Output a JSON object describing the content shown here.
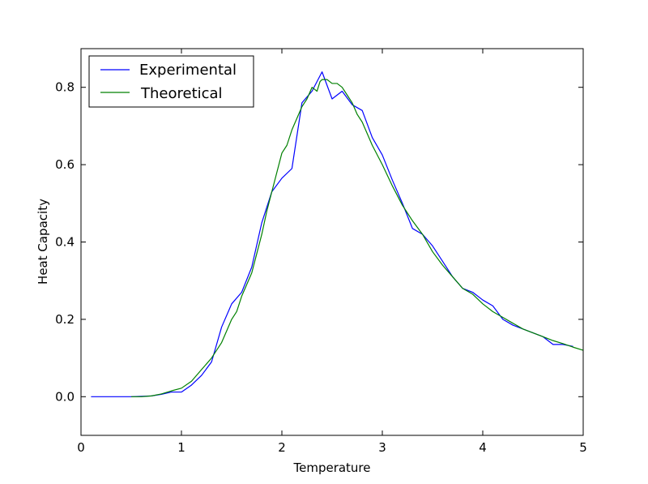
{
  "chart_data": {
    "type": "line",
    "title": "",
    "xlabel": "Temperature",
    "ylabel": "Heat Capacity",
    "xlim": [
      0,
      5
    ],
    "ylim": [
      -0.1,
      0.9
    ],
    "xticks": [
      0,
      1,
      2,
      3,
      4,
      5
    ],
    "yticks": [
      0.0,
      0.2,
      0.4,
      0.6,
      0.8
    ],
    "grid": false,
    "legend_position": "top-left",
    "series": [
      {
        "name": "Experimental",
        "color": "#0000ff",
        "x": [
          0.1,
          0.3,
          0.5,
          0.7,
          0.8,
          0.9,
          1.0,
          1.1,
          1.2,
          1.3,
          1.4,
          1.5,
          1.6,
          1.7,
          1.8,
          1.9,
          2.0,
          2.1,
          2.2,
          2.3,
          2.4,
          2.5,
          2.6,
          2.7,
          2.8,
          2.9,
          3.0,
          3.1,
          3.2,
          3.3,
          3.4,
          3.5,
          3.6,
          3.7,
          3.8,
          3.9,
          4.0,
          4.1,
          4.2,
          4.3,
          4.4,
          4.5,
          4.6,
          4.7,
          4.8,
          4.9
        ],
        "y": [
          0.0,
          0.0,
          0.0,
          0.002,
          0.006,
          0.012,
          0.012,
          0.03,
          0.055,
          0.09,
          0.18,
          0.24,
          0.27,
          0.335,
          0.45,
          0.53,
          0.565,
          0.59,
          0.76,
          0.79,
          0.84,
          0.77,
          0.79,
          0.755,
          0.74,
          0.67,
          0.625,
          0.56,
          0.5,
          0.435,
          0.42,
          0.39,
          0.35,
          0.31,
          0.28,
          0.27,
          0.25,
          0.235,
          0.2,
          0.185,
          0.175,
          0.165,
          0.155,
          0.135,
          0.135,
          0.13
        ]
      },
      {
        "name": "Theoretical",
        "color": "#008000",
        "x": [
          0.5,
          0.6,
          0.7,
          0.8,
          0.9,
          1.0,
          1.1,
          1.2,
          1.3,
          1.4,
          1.45,
          1.5,
          1.55,
          1.6,
          1.65,
          1.7,
          1.75,
          1.8,
          1.85,
          1.9,
          1.95,
          2.0,
          2.05,
          2.1,
          2.15,
          2.2,
          2.25,
          2.3,
          2.35,
          2.38,
          2.4,
          2.45,
          2.5,
          2.55,
          2.6,
          2.65,
          2.7,
          2.75,
          2.8,
          2.9,
          3.0,
          3.1,
          3.2,
          3.3,
          3.4,
          3.5,
          3.6,
          3.7,
          3.8,
          3.9,
          4.0,
          4.1,
          4.2,
          4.3,
          4.4,
          4.5,
          4.6,
          4.7,
          4.8,
          4.9,
          5.0
        ],
        "y": [
          0.0,
          0.0,
          0.002,
          0.007,
          0.015,
          0.022,
          0.04,
          0.07,
          0.1,
          0.14,
          0.17,
          0.2,
          0.22,
          0.26,
          0.29,
          0.32,
          0.37,
          0.42,
          0.48,
          0.53,
          0.58,
          0.63,
          0.65,
          0.69,
          0.72,
          0.75,
          0.77,
          0.8,
          0.79,
          0.815,
          0.82,
          0.82,
          0.81,
          0.81,
          0.8,
          0.78,
          0.76,
          0.73,
          0.71,
          0.65,
          0.6,
          0.545,
          0.495,
          0.455,
          0.42,
          0.375,
          0.34,
          0.31,
          0.28,
          0.265,
          0.24,
          0.22,
          0.205,
          0.19,
          0.175,
          0.165,
          0.155,
          0.145,
          0.137,
          0.128,
          0.12
        ]
      }
    ]
  }
}
